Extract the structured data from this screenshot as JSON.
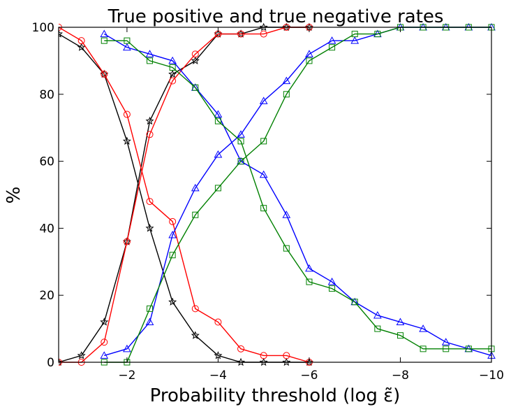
{
  "chart_data": {
    "type": "line",
    "title": "True positive and true negative rates",
    "xlabel": "Probability threshold (log ε̃)",
    "ylabel": "%",
    "xlim": [
      -0.5,
      -10
    ],
    "ylim": [
      0,
      100
    ],
    "x_ticks": [
      -2,
      -4,
      -6,
      -8,
      -10
    ],
    "x_tick_labels": [
      "−2",
      "−4",
      "−6",
      "−8",
      "−10"
    ],
    "y_ticks": [
      0,
      20,
      40,
      60,
      80,
      100
    ],
    "y_tick_labels": [
      "0",
      "20",
      "40",
      "60",
      "80",
      "100"
    ],
    "grid": false,
    "series": [
      {
        "color": "#000000",
        "marker": "star",
        "x": [
          -0.5,
          -1,
          -1.5,
          -2,
          -2.5,
          -3,
          -3.5,
          -4,
          -4.5,
          -5,
          -5.5,
          -6
        ],
        "values": [
          0,
          2,
          12,
          36,
          72,
          86,
          90,
          98,
          98,
          100,
          100,
          100
        ]
      },
      {
        "color": "#000000",
        "marker": "star",
        "x": [
          -0.5,
          -1,
          -1.5,
          -2,
          -2.5,
          -3,
          -3.5,
          -4,
          -4.5,
          -5,
          -5.5,
          -6
        ],
        "values": [
          98,
          94,
          86,
          66,
          40,
          18,
          8,
          2,
          0,
          0,
          0,
          0
        ]
      },
      {
        "color": "#ff0000",
        "marker": "circle",
        "x": [
          -0.5,
          -1,
          -1.5,
          -2,
          -2.5,
          -3,
          -3.5,
          -4,
          -4.5,
          -5,
          -5.5,
          -6
        ],
        "values": [
          0,
          0,
          6,
          36,
          68,
          84,
          92,
          98,
          98,
          98,
          100,
          100
        ]
      },
      {
        "color": "#ff0000",
        "marker": "circle",
        "x": [
          -0.5,
          -1,
          -1.5,
          -2,
          -2.5,
          -3,
          -3.5,
          -4,
          -4.5,
          -5,
          -5.5,
          -6
        ],
        "values": [
          100,
          96,
          86,
          74,
          48,
          42,
          16,
          12,
          4,
          2,
          2,
          0
        ]
      },
      {
        "color": "#0000ff",
        "marker": "triangle",
        "x": [
          -1.5,
          -2,
          -2.5,
          -3,
          -3.5,
          -4,
          -4.5,
          -5,
          -5.5,
          -6,
          -6.5,
          -7,
          -7.5,
          -8,
          -8.5,
          -9,
          -9.5,
          -10
        ],
        "values": [
          2,
          4,
          12,
          38,
          52,
          62,
          68,
          78,
          84,
          92,
          96,
          96,
          98,
          100,
          100,
          100,
          100,
          100
        ]
      },
      {
        "color": "#0000ff",
        "marker": "triangle",
        "x": [
          -1.5,
          -2,
          -2.5,
          -3,
          -3.5,
          -4,
          -4.5,
          -5,
          -5.5,
          -6,
          -6.5,
          -7,
          -7.5,
          -8,
          -8.5,
          -9,
          -9.5,
          -10
        ],
        "values": [
          98,
          94,
          92,
          90,
          82,
          74,
          60,
          56,
          44,
          28,
          24,
          18,
          14,
          12,
          10,
          6,
          4,
          2
        ]
      },
      {
        "color": "#008000",
        "marker": "square",
        "x": [
          -1.5,
          -2,
          -2.5,
          -3,
          -3.5,
          -4,
          -4.5,
          -5,
          -5.5,
          -6,
          -6.5,
          -7,
          -7.5,
          -8,
          -8.5,
          -9,
          -9.5,
          -10
        ],
        "values": [
          0,
          0,
          16,
          32,
          44,
          52,
          60,
          66,
          80,
          90,
          94,
          98,
          98,
          100,
          100,
          100,
          100,
          100
        ]
      },
      {
        "color": "#008000",
        "marker": "square",
        "x": [
          -1.5,
          -2,
          -2.5,
          -3,
          -3.5,
          -4,
          -4.5,
          -5,
          -5.5,
          -6,
          -6.5,
          -7,
          -7.5,
          -8,
          -8.5,
          -9,
          -9.5,
          -10
        ],
        "values": [
          96,
          96,
          90,
          88,
          82,
          72,
          66,
          46,
          34,
          24,
          22,
          18,
          10,
          8,
          4,
          4,
          4,
          4
        ]
      }
    ]
  }
}
